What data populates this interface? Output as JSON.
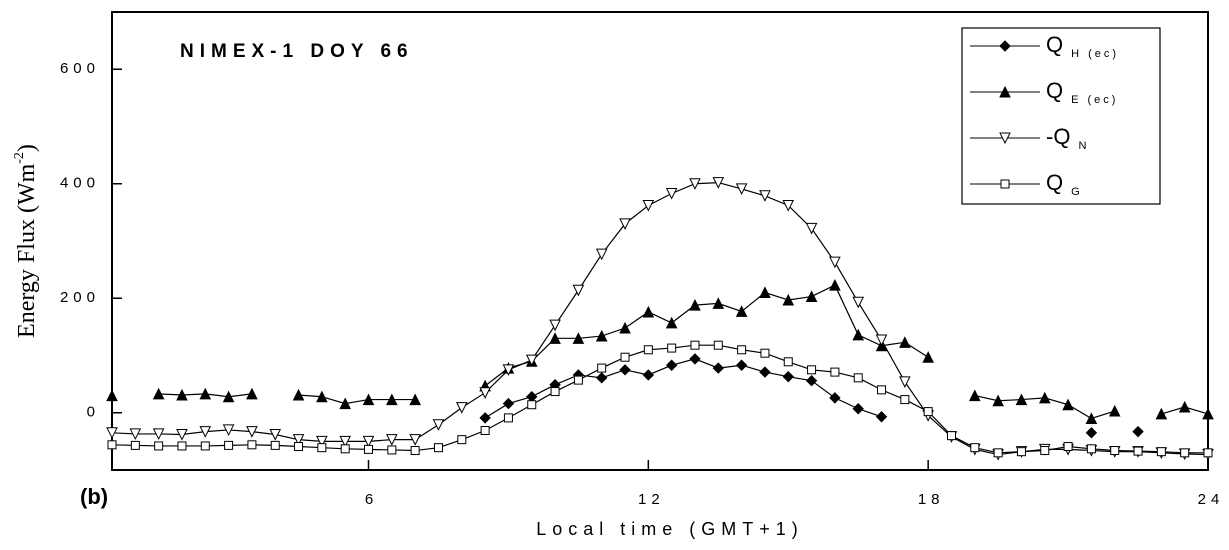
{
  "chart_data": {
    "type": "line",
    "title": "NIMEX-1 DOY 66",
    "xlabel": "Local time (GMT+1)",
    "ylabel": "Energy Flux (Wm",
    "ylabel_sup": "-2",
    "ylabel_end": ")",
    "panel_label": "(b)",
    "x": [
      0.5,
      1,
      1.5,
      2,
      2.5,
      3,
      3.5,
      4,
      4.5,
      5,
      5.5,
      6,
      6.5,
      7,
      7.5,
      8,
      8.5,
      9,
      9.5,
      10,
      10.5,
      11,
      11.5,
      12,
      12.5,
      13,
      13.5,
      14,
      14.5,
      15,
      15.5,
      16,
      16.5,
      17,
      17.5,
      18,
      18.5,
      19,
      19.5,
      20,
      20.5,
      21,
      21.5,
      22,
      22.5,
      23,
      23.5,
      24
    ],
    "xlim": [
      0.5,
      24
    ],
    "xticks": [
      6,
      12,
      18,
      24
    ],
    "ylim": [
      -100,
      700
    ],
    "yticks": [
      0,
      200,
      400,
      600
    ],
    "series": [
      {
        "name": "Q",
        "name_sub": "H (ec)",
        "marker": "diamond",
        "color": "#000000",
        "values": [
          null,
          null,
          null,
          null,
          null,
          null,
          null,
          null,
          null,
          null,
          null,
          null,
          null,
          null,
          null,
          null,
          -9,
          16,
          28,
          49,
          66,
          61,
          75,
          66,
          83,
          94,
          78,
          83,
          71,
          63,
          56,
          26,
          7,
          -7,
          null,
          null,
          null,
          null,
          null,
          null,
          null,
          null,
          -35,
          null,
          -33,
          null,
          null,
          null
        ]
      },
      {
        "name": "Q",
        "name_sub": "E (ec)",
        "marker": "triangle-up",
        "color": "#000000",
        "values": [
          30,
          null,
          33,
          31,
          33,
          28,
          33,
          null,
          31,
          28,
          16,
          23,
          23,
          23,
          null,
          null,
          47,
          78,
          90,
          130,
          130,
          134,
          148,
          176,
          157,
          188,
          191,
          177,
          210,
          197,
          203,
          223,
          136,
          117,
          123,
          97,
          null,
          30,
          21,
          23,
          26,
          14,
          -10,
          3,
          null,
          -2,
          10,
          -2
        ]
      },
      {
        "name": "-Q",
        "name_sub": "N",
        "marker": "triangle-down",
        "color": "#000000",
        "values": [
          -35,
          -37,
          -37,
          -38,
          -33,
          -30,
          -33,
          -38,
          -47,
          -50,
          -50,
          -50,
          -47,
          -47,
          -21,
          9,
          35,
          75,
          92,
          153,
          214,
          277,
          330,
          362,
          383,
          400,
          402,
          391,
          379,
          362,
          322,
          263,
          193,
          127,
          54,
          -5,
          -42,
          -64,
          -73,
          -68,
          -64,
          -64,
          -66,
          -68,
          -68,
          -70,
          -72,
          -73
        ]
      },
      {
        "name": "Q",
        "name_sub": "G",
        "marker": "square",
        "color": "#000000",
        "values": [
          -56,
          -57,
          -58,
          -58,
          -58,
          -57,
          -56,
          -57,
          -59,
          -61,
          -63,
          -64,
          -65,
          -66,
          -61,
          -47,
          -31,
          -9,
          14,
          37,
          57,
          78,
          97,
          110,
          113,
          118,
          118,
          110,
          104,
          89,
          75,
          71,
          61,
          40,
          23,
          2,
          -40,
          -61,
          -70,
          -68,
          -66,
          -59,
          -63,
          -66,
          -67,
          -68,
          -70,
          -70
        ]
      }
    ]
  }
}
